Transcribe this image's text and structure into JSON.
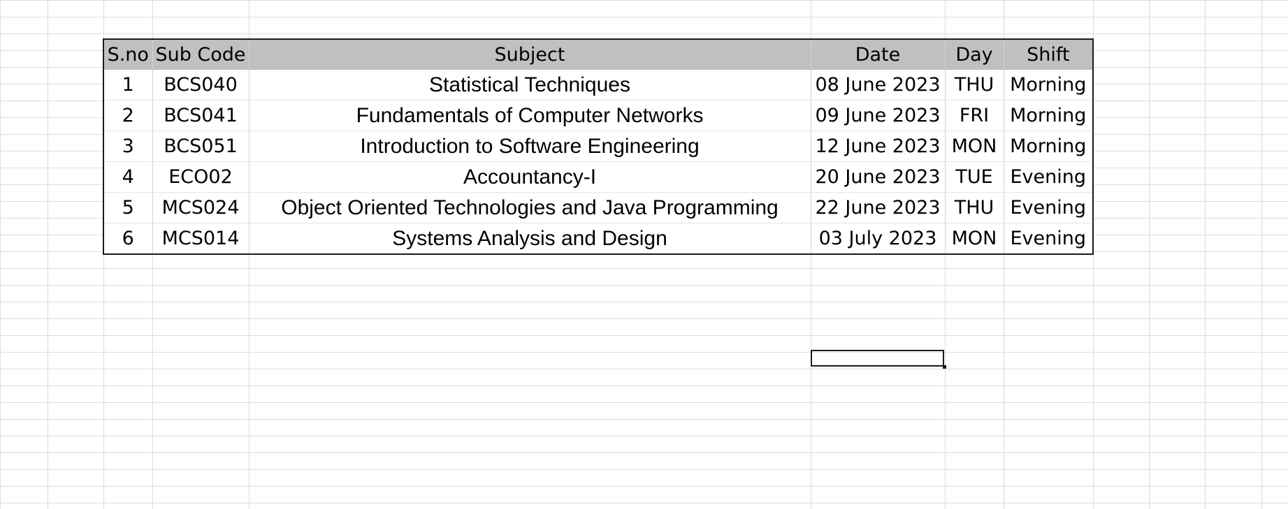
{
  "table": {
    "headers": [
      "S.no",
      "Sub Code",
      "Subject",
      "Date",
      "Day",
      "Shift"
    ],
    "rows": [
      [
        "1",
        "BCS040",
        "Statistical Techniques",
        "08 June 2023",
        "THU",
        "Morning"
      ],
      [
        "2",
        "BCS041",
        "Fundamentals of Computer Networks",
        "09 June 2023",
        "FRI",
        "Morning"
      ],
      [
        "3",
        "BCS051",
        "Introduction to Software Engineering",
        "12 June 2023",
        "MON",
        "Morning"
      ],
      [
        "4",
        "ECO02",
        "Accountancy-I",
        "20 June 2023",
        "TUE",
        "Evening"
      ],
      [
        "5",
        "MCS024",
        "Object Oriented Technologies and Java Programming",
        "22 June 2023",
        "THU",
        "Evening"
      ],
      [
        "6",
        "MCS014",
        "Systems Analysis and Design",
        "03 July 2023",
        "MON",
        "Evening"
      ]
    ]
  },
  "colors": {
    "header_background": "#c0c0c0",
    "gridline": "#dadce6",
    "border": "#1a1a1a"
  }
}
